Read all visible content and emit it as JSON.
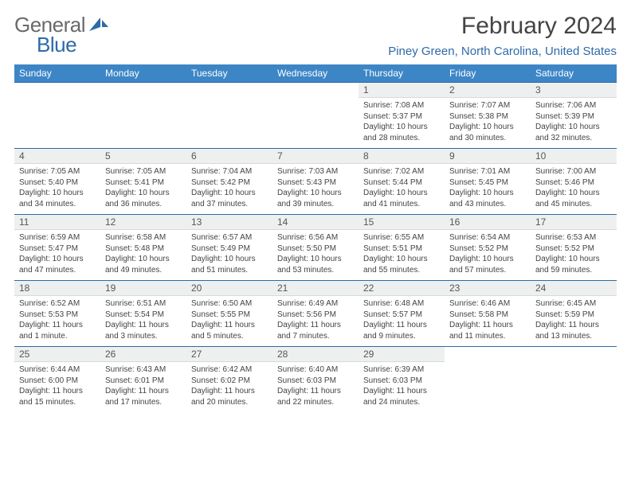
{
  "brand": {
    "general": "General",
    "blue": "Blue"
  },
  "title": "February 2024",
  "location": "Piney Green, North Carolina, United States",
  "style": {
    "header_bg": "#3d86c6",
    "header_fg": "#ffffff",
    "accent": "#2d6aa8",
    "body_bg": "#ffffff",
    "daynum_bg": "#eef0ef",
    "text": "#444444",
    "title_fontsize": 30,
    "location_fontsize": 15,
    "dayheader_fontsize": 12,
    "daynum_fontsize": 12,
    "daytext_fontsize": 10
  },
  "day_headers": [
    "Sunday",
    "Monday",
    "Tuesday",
    "Wednesday",
    "Thursday",
    "Friday",
    "Saturday"
  ],
  "weeks": [
    [
      null,
      null,
      null,
      null,
      {
        "n": "1",
        "sr": "Sunrise: 7:08 AM",
        "ss": "Sunset: 5:37 PM",
        "d1": "Daylight: 10 hours",
        "d2": "and 28 minutes."
      },
      {
        "n": "2",
        "sr": "Sunrise: 7:07 AM",
        "ss": "Sunset: 5:38 PM",
        "d1": "Daylight: 10 hours",
        "d2": "and 30 minutes."
      },
      {
        "n": "3",
        "sr": "Sunrise: 7:06 AM",
        "ss": "Sunset: 5:39 PM",
        "d1": "Daylight: 10 hours",
        "d2": "and 32 minutes."
      }
    ],
    [
      {
        "n": "4",
        "sr": "Sunrise: 7:05 AM",
        "ss": "Sunset: 5:40 PM",
        "d1": "Daylight: 10 hours",
        "d2": "and 34 minutes."
      },
      {
        "n": "5",
        "sr": "Sunrise: 7:05 AM",
        "ss": "Sunset: 5:41 PM",
        "d1": "Daylight: 10 hours",
        "d2": "and 36 minutes."
      },
      {
        "n": "6",
        "sr": "Sunrise: 7:04 AM",
        "ss": "Sunset: 5:42 PM",
        "d1": "Daylight: 10 hours",
        "d2": "and 37 minutes."
      },
      {
        "n": "7",
        "sr": "Sunrise: 7:03 AM",
        "ss": "Sunset: 5:43 PM",
        "d1": "Daylight: 10 hours",
        "d2": "and 39 minutes."
      },
      {
        "n": "8",
        "sr": "Sunrise: 7:02 AM",
        "ss": "Sunset: 5:44 PM",
        "d1": "Daylight: 10 hours",
        "d2": "and 41 minutes."
      },
      {
        "n": "9",
        "sr": "Sunrise: 7:01 AM",
        "ss": "Sunset: 5:45 PM",
        "d1": "Daylight: 10 hours",
        "d2": "and 43 minutes."
      },
      {
        "n": "10",
        "sr": "Sunrise: 7:00 AM",
        "ss": "Sunset: 5:46 PM",
        "d1": "Daylight: 10 hours",
        "d2": "and 45 minutes."
      }
    ],
    [
      {
        "n": "11",
        "sr": "Sunrise: 6:59 AM",
        "ss": "Sunset: 5:47 PM",
        "d1": "Daylight: 10 hours",
        "d2": "and 47 minutes."
      },
      {
        "n": "12",
        "sr": "Sunrise: 6:58 AM",
        "ss": "Sunset: 5:48 PM",
        "d1": "Daylight: 10 hours",
        "d2": "and 49 minutes."
      },
      {
        "n": "13",
        "sr": "Sunrise: 6:57 AM",
        "ss": "Sunset: 5:49 PM",
        "d1": "Daylight: 10 hours",
        "d2": "and 51 minutes."
      },
      {
        "n": "14",
        "sr": "Sunrise: 6:56 AM",
        "ss": "Sunset: 5:50 PM",
        "d1": "Daylight: 10 hours",
        "d2": "and 53 minutes."
      },
      {
        "n": "15",
        "sr": "Sunrise: 6:55 AM",
        "ss": "Sunset: 5:51 PM",
        "d1": "Daylight: 10 hours",
        "d2": "and 55 minutes."
      },
      {
        "n": "16",
        "sr": "Sunrise: 6:54 AM",
        "ss": "Sunset: 5:52 PM",
        "d1": "Daylight: 10 hours",
        "d2": "and 57 minutes."
      },
      {
        "n": "17",
        "sr": "Sunrise: 6:53 AM",
        "ss": "Sunset: 5:52 PM",
        "d1": "Daylight: 10 hours",
        "d2": "and 59 minutes."
      }
    ],
    [
      {
        "n": "18",
        "sr": "Sunrise: 6:52 AM",
        "ss": "Sunset: 5:53 PM",
        "d1": "Daylight: 11 hours",
        "d2": "and 1 minute."
      },
      {
        "n": "19",
        "sr": "Sunrise: 6:51 AM",
        "ss": "Sunset: 5:54 PM",
        "d1": "Daylight: 11 hours",
        "d2": "and 3 minutes."
      },
      {
        "n": "20",
        "sr": "Sunrise: 6:50 AM",
        "ss": "Sunset: 5:55 PM",
        "d1": "Daylight: 11 hours",
        "d2": "and 5 minutes."
      },
      {
        "n": "21",
        "sr": "Sunrise: 6:49 AM",
        "ss": "Sunset: 5:56 PM",
        "d1": "Daylight: 11 hours",
        "d2": "and 7 minutes."
      },
      {
        "n": "22",
        "sr": "Sunrise: 6:48 AM",
        "ss": "Sunset: 5:57 PM",
        "d1": "Daylight: 11 hours",
        "d2": "and 9 minutes."
      },
      {
        "n": "23",
        "sr": "Sunrise: 6:46 AM",
        "ss": "Sunset: 5:58 PM",
        "d1": "Daylight: 11 hours",
        "d2": "and 11 minutes."
      },
      {
        "n": "24",
        "sr": "Sunrise: 6:45 AM",
        "ss": "Sunset: 5:59 PM",
        "d1": "Daylight: 11 hours",
        "d2": "and 13 minutes."
      }
    ],
    [
      {
        "n": "25",
        "sr": "Sunrise: 6:44 AM",
        "ss": "Sunset: 6:00 PM",
        "d1": "Daylight: 11 hours",
        "d2": "and 15 minutes."
      },
      {
        "n": "26",
        "sr": "Sunrise: 6:43 AM",
        "ss": "Sunset: 6:01 PM",
        "d1": "Daylight: 11 hours",
        "d2": "and 17 minutes."
      },
      {
        "n": "27",
        "sr": "Sunrise: 6:42 AM",
        "ss": "Sunset: 6:02 PM",
        "d1": "Daylight: 11 hours",
        "d2": "and 20 minutes."
      },
      {
        "n": "28",
        "sr": "Sunrise: 6:40 AM",
        "ss": "Sunset: 6:03 PM",
        "d1": "Daylight: 11 hours",
        "d2": "and 22 minutes."
      },
      {
        "n": "29",
        "sr": "Sunrise: 6:39 AM",
        "ss": "Sunset: 6:03 PM",
        "d1": "Daylight: 11 hours",
        "d2": "and 24 minutes."
      },
      null,
      null
    ]
  ]
}
